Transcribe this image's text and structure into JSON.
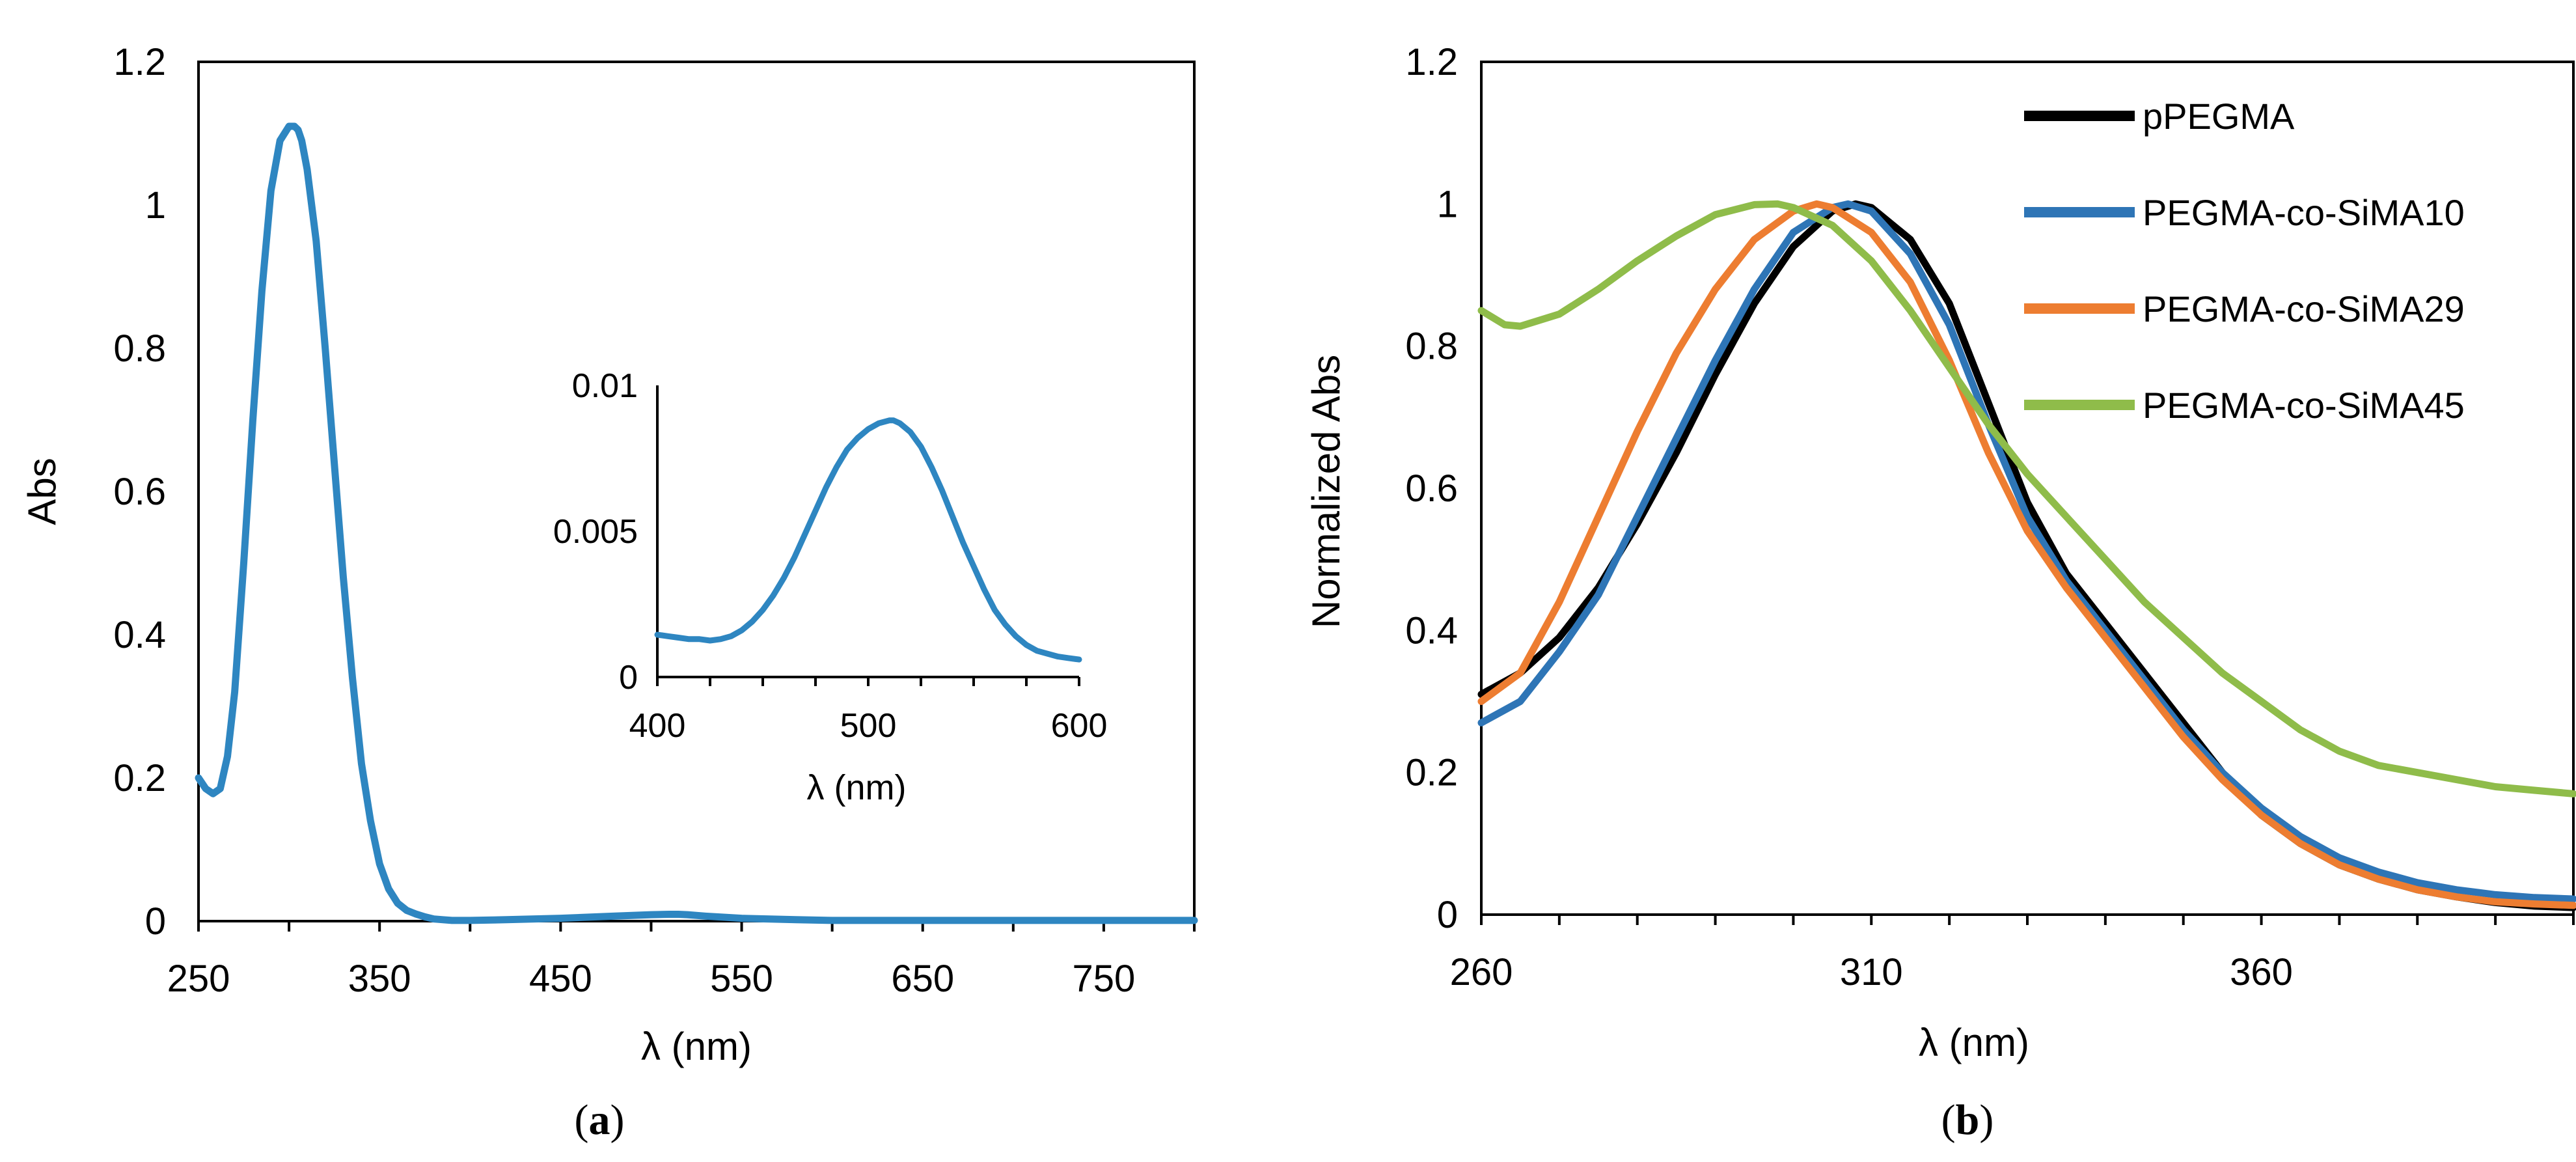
{
  "panel_a": {
    "caption_open": "(",
    "caption_letter": "a",
    "caption_close": ")"
  },
  "panel_b": {
    "caption_open": "(",
    "caption_letter": "b",
    "caption_close": ")"
  },
  "chart_data": [
    {
      "id": "a",
      "type": "line",
      "title": "",
      "xlabel": "λ (nm)",
      "ylabel": "Abs",
      "xlim": [
        250,
        800
      ],
      "ylim": [
        0,
        1.2
      ],
      "xticks": [
        250,
        350,
        450,
        550,
        650,
        750
      ],
      "xtick_labels": [
        "250",
        "350",
        "450",
        "550",
        "650",
        "750"
      ],
      "xminor_step": 50,
      "yticks": [
        0,
        0.2,
        0.4,
        0.6,
        0.8,
        1,
        1.2
      ],
      "ytick_labels": [
        "0",
        "0.2",
        "0.4",
        "0.6",
        "0.8",
        "1",
        "1.2"
      ],
      "grid": false,
      "series": [
        {
          "name": "Abs",
          "color": "#2e86c1",
          "x": [
            250,
            254,
            258,
            262,
            266,
            270,
            275,
            280,
            285,
            290,
            295,
            300,
            303,
            305,
            307,
            310,
            315,
            320,
            325,
            330,
            335,
            340,
            345,
            350,
            355,
            360,
            365,
            370,
            375,
            380,
            385,
            390,
            400,
            420,
            450,
            480,
            500,
            510,
            515,
            520,
            530,
            550,
            580,
            600,
            650,
            700,
            750,
            800
          ],
          "y": [
            0.2,
            0.185,
            0.178,
            0.185,
            0.23,
            0.32,
            0.5,
            0.7,
            0.88,
            1.02,
            1.09,
            1.11,
            1.11,
            1.105,
            1.09,
            1.05,
            0.95,
            0.8,
            0.64,
            0.48,
            0.34,
            0.22,
            0.14,
            0.08,
            0.045,
            0.025,
            0.015,
            0.01,
            0.006,
            0.003,
            0.002,
            0.001,
            0.001,
            0.002,
            0.004,
            0.007,
            0.009,
            0.0095,
            0.0095,
            0.009,
            0.007,
            0.004,
            0.002,
            0.001,
            0.001,
            0.001,
            0.001,
            0.001
          ]
        }
      ],
      "inset": {
        "type": "line",
        "xlabel": "λ (nm)",
        "ylabel": "",
        "xlim": [
          400,
          600
        ],
        "ylim": [
          0,
          0.01
        ],
        "xticks": [
          400,
          500,
          600
        ],
        "xtick_labels": [
          "400",
          "500",
          "600"
        ],
        "xminor_step": 25,
        "yticks": [
          0,
          0.005,
          0.01
        ],
        "ytick_labels": [
          "0",
          "0.005",
          "0.01"
        ],
        "series": [
          {
            "name": "Abs (inset)",
            "color": "#2e86c1",
            "x": [
              400,
              405,
              410,
              415,
              420,
              425,
              430,
              435,
              440,
              445,
              450,
              455,
              460,
              465,
              470,
              475,
              480,
              485,
              490,
              495,
              500,
              505,
              510,
              512,
              515,
              520,
              525,
              530,
              535,
              540,
              545,
              550,
              555,
              560,
              565,
              570,
              575,
              580,
              585,
              590,
              595,
              600
            ],
            "y": [
              0.00145,
              0.0014,
              0.00135,
              0.0013,
              0.0013,
              0.00125,
              0.0013,
              0.0014,
              0.0016,
              0.0019,
              0.0023,
              0.0028,
              0.0034,
              0.0041,
              0.0049,
              0.0057,
              0.0065,
              0.0072,
              0.0078,
              0.0082,
              0.0085,
              0.0087,
              0.0088,
              0.0088,
              0.0087,
              0.0084,
              0.0079,
              0.0072,
              0.0064,
              0.0055,
              0.0046,
              0.0038,
              0.003,
              0.0023,
              0.0018,
              0.0014,
              0.0011,
              0.0009,
              0.0008,
              0.0007,
              0.00065,
              0.0006
            ]
          }
        ]
      }
    },
    {
      "id": "b",
      "type": "line",
      "title": "",
      "xlabel": "λ (nm)",
      "ylabel": "Normalized Abs",
      "xlim": [
        260,
        400
      ],
      "ylim": [
        0,
        1.2
      ],
      "xticks": [
        260,
        310,
        360
      ],
      "xtick_labels": [
        "260",
        "310",
        "360"
      ],
      "xminor_step": 10,
      "yticks": [
        0,
        0.2,
        0.4,
        0.6,
        0.8,
        1,
        1.2
      ],
      "ytick_labels": [
        "0",
        "0.2",
        "0.4",
        "0.6",
        "0.8",
        "1",
        "1.2"
      ],
      "grid": false,
      "legend_position": "top-right",
      "series": [
        {
          "name": "pPEGMA",
          "color": "#000000",
          "x": [
            260,
            265,
            270,
            275,
            280,
            285,
            290,
            295,
            300,
            305,
            308,
            310,
            315,
            320,
            325,
            330,
            335,
            340,
            345,
            350,
            355,
            360,
            365,
            370,
            375,
            380,
            385,
            390,
            395,
            400
          ],
          "y": [
            0.31,
            0.34,
            0.39,
            0.46,
            0.55,
            0.65,
            0.76,
            0.86,
            0.94,
            0.99,
            1.0,
            0.995,
            0.95,
            0.86,
            0.72,
            0.58,
            0.48,
            0.41,
            0.34,
            0.27,
            0.2,
            0.14,
            0.1,
            0.07,
            0.05,
            0.035,
            0.025,
            0.017,
            0.012,
            0.01
          ]
        },
        {
          "name": "PEGMA-co-SiMA10",
          "color": "#2e75b6",
          "x": [
            260,
            265,
            270,
            275,
            280,
            285,
            290,
            295,
            300,
            305,
            307,
            310,
            315,
            320,
            325,
            330,
            335,
            340,
            345,
            350,
            355,
            360,
            365,
            370,
            375,
            380,
            385,
            390,
            395,
            400
          ],
          "y": [
            0.27,
            0.3,
            0.37,
            0.45,
            0.56,
            0.67,
            0.78,
            0.88,
            0.96,
            0.995,
            1.0,
            0.99,
            0.93,
            0.83,
            0.69,
            0.56,
            0.47,
            0.4,
            0.33,
            0.26,
            0.2,
            0.15,
            0.11,
            0.08,
            0.06,
            0.045,
            0.035,
            0.028,
            0.024,
            0.022
          ]
        },
        {
          "name": "PEGMA-co-SiMA29",
          "color": "#ed7d31",
          "x": [
            260,
            265,
            270,
            275,
            280,
            285,
            290,
            295,
            300,
            303,
            305,
            310,
            315,
            320,
            325,
            330,
            335,
            340,
            345,
            350,
            355,
            360,
            365,
            370,
            375,
            380,
            385,
            390,
            395,
            400
          ],
          "y": [
            0.3,
            0.34,
            0.44,
            0.56,
            0.68,
            0.79,
            0.88,
            0.95,
            0.99,
            1.0,
            0.995,
            0.96,
            0.89,
            0.78,
            0.65,
            0.54,
            0.46,
            0.39,
            0.32,
            0.25,
            0.19,
            0.14,
            0.1,
            0.07,
            0.05,
            0.035,
            0.025,
            0.018,
            0.015,
            0.013
          ]
        },
        {
          "name": "PEGMA-co-SiMA45",
          "color": "#8fbc4a",
          "x": [
            260,
            263,
            265,
            270,
            275,
            280,
            285,
            290,
            295,
            298,
            300,
            305,
            310,
            315,
            320,
            325,
            330,
            335,
            340,
            345,
            350,
            355,
            360,
            365,
            370,
            375,
            380,
            385,
            390,
            395,
            400
          ],
          "y": [
            0.85,
            0.83,
            0.828,
            0.845,
            0.88,
            0.92,
            0.955,
            0.985,
            0.999,
            1.0,
            0.995,
            0.97,
            0.92,
            0.85,
            0.77,
            0.69,
            0.62,
            0.56,
            0.5,
            0.44,
            0.39,
            0.34,
            0.3,
            0.26,
            0.23,
            0.21,
            0.2,
            0.19,
            0.18,
            0.175,
            0.17
          ]
        }
      ]
    }
  ]
}
